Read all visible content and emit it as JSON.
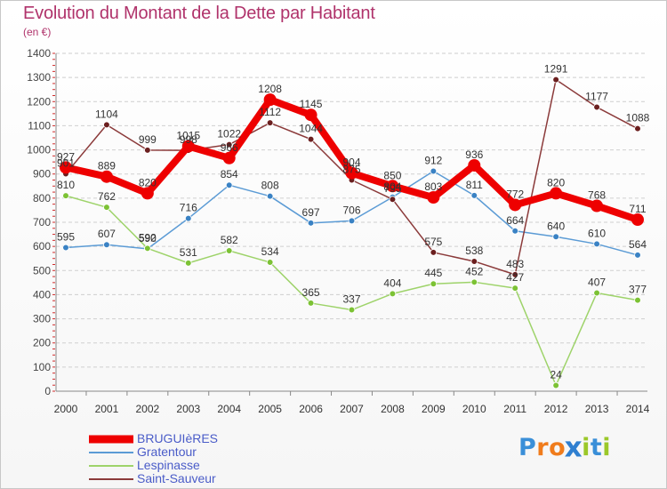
{
  "header": {
    "title": "Evolution du Montant de la Dette par Habitant",
    "subtitle": "(en €)"
  },
  "logo": {
    "text": "Proxiti",
    "letter_colors": [
      "#3a8fd8",
      "#f07c1c",
      "#f07c1c",
      "#2f7fd0",
      "#9bc82a",
      "#3a8fd8",
      "#9bc82a"
    ]
  },
  "chart_data": {
    "type": "line",
    "x": [
      2000,
      2001,
      2002,
      2003,
      2004,
      2005,
      2006,
      2007,
      2008,
      2009,
      2010,
      2011,
      2012,
      2013,
      2014
    ],
    "ylim": [
      0,
      1400
    ],
    "yticks": [
      0,
      100,
      200,
      300,
      400,
      500,
      600,
      700,
      800,
      900,
      1000,
      1100,
      1200,
      1300,
      1400
    ],
    "grid": "horizontal",
    "legend_position": "bottom-left",
    "series": [
      {
        "name": "BRUGUIèRES",
        "color": "#ee0000",
        "values": [
          927,
          889,
          820,
          1015,
          966,
          1208,
          1145,
          904,
          850,
          803,
          936,
          772,
          820,
          768,
          711
        ],
        "labels": [
          "927",
          "889",
          "820",
          "1015",
          "966",
          "1208",
          "1145",
          "904",
          "850",
          "803",
          "936",
          "772",
          "820",
          "768",
          "711"
        ]
      },
      {
        "name": "Gratentour",
        "color": "#5b9bd5",
        "point_color": "#3a82c4",
        "values": [
          595,
          607,
          590,
          716,
          854,
          808,
          697,
          706,
          804,
          912,
          811,
          664,
          640,
          610,
          564
        ],
        "labels": [
          "595",
          "607",
          "590",
          "716",
          "854",
          "808",
          "697",
          "706",
          "804",
          "912",
          "811",
          "664",
          "640",
          "610",
          "564"
        ]
      },
      {
        "name": "Lespinasse",
        "color": "#9ed36a",
        "point_color": "#7cc234",
        "values": [
          810,
          762,
          592,
          531,
          582,
          534,
          365,
          337,
          404,
          445,
          452,
          427,
          24,
          407,
          377
        ],
        "labels": [
          "810",
          "762",
          "592",
          "531",
          "582",
          "534",
          "365",
          "337",
          "404",
          "445",
          "452",
          "427",
          "24",
          "407",
          "377"
        ]
      },
      {
        "name": "Saint-Sauveur",
        "color": "#8b3a3a",
        "point_color": "#6b1f1f",
        "values": [
          901,
          1104,
          999,
          998,
          1022,
          1112,
          1044,
          875,
          795,
          575,
          538,
          483,
          1291,
          1177,
          1088
        ],
        "labels": [
          "901",
          "1104",
          "999",
          "998",
          "1022",
          "1112",
          "1044",
          "875",
          "795",
          "575",
          "538",
          "483",
          "1291",
          "1177",
          "1088"
        ]
      }
    ]
  }
}
